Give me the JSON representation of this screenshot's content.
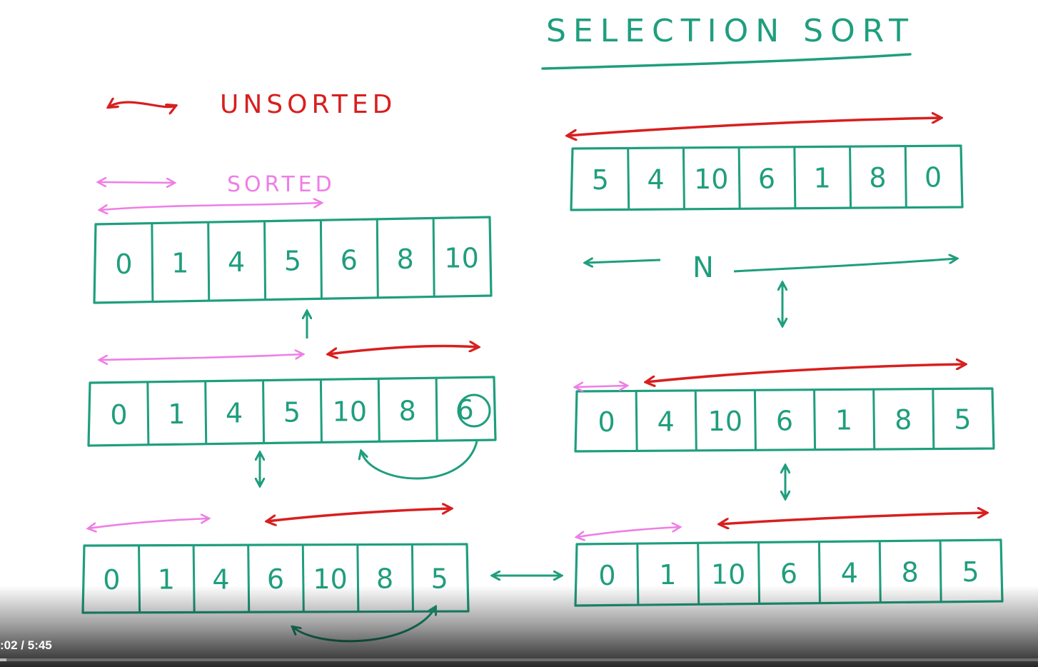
{
  "title": "SELECTION SORT",
  "legend": {
    "unsorted": "UNSORTED",
    "sorted": "SORTED"
  },
  "n_label": "N",
  "arrays": {
    "initial": [
      "5",
      "4",
      "10",
      "6",
      "1",
      "8",
      "0"
    ],
    "step1": [
      "0",
      "4",
      "10",
      "6",
      "1",
      "8",
      "5"
    ],
    "step2": [
      "0",
      "1",
      "10",
      "6",
      "4",
      "8",
      "5"
    ],
    "step3": [
      "0",
      "1",
      "4",
      "6",
      "10",
      "8",
      "5"
    ],
    "step4": [
      "0",
      "1",
      "4",
      "5",
      "10",
      "8",
      "6"
    ],
    "final": [
      "0",
      "1",
      "4",
      "5",
      "6",
      "8",
      "10"
    ]
  },
  "colors": {
    "teal": "#1f9e7e",
    "red": "#d81f1f",
    "pink": "#ee7ee6",
    "ink_bg": "#ffffff"
  },
  "player": {
    "time": ":02 / 5:45",
    "progress": 0.006
  }
}
